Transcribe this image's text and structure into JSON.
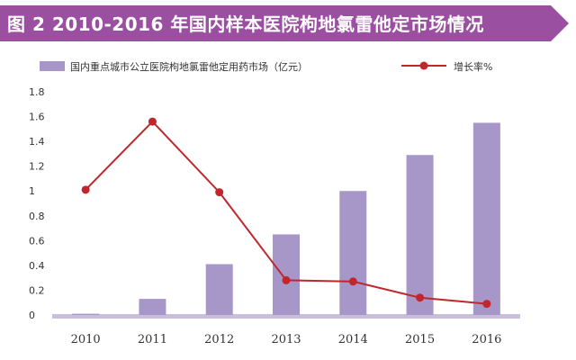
{
  "title": "图 2  2010-2016 年国内样本医院枸地氯雷他定市场情况",
  "colors": {
    "banner": "#9b4fa0",
    "bar": "#a797c9",
    "line": "#c0272d",
    "axis": "#c9bfdc"
  },
  "chart_data": {
    "type": "bar",
    "categories": [
      "2010",
      "2011",
      "2012",
      "2013",
      "2014",
      "2015",
      "2016"
    ],
    "series": [
      {
        "name": "国内重点城市公立医院枸地氯雷他定用药市场（亿元）",
        "type": "bar",
        "values": [
          0.01,
          0.13,
          0.41,
          0.65,
          1.0,
          1.29,
          1.55
        ]
      },
      {
        "name": "增长率%",
        "type": "line",
        "values": [
          1.01,
          1.56,
          0.99,
          0.28,
          0.27,
          0.14,
          0.09
        ]
      }
    ],
    "yticks": [
      "0",
      "0.2",
      "0.4",
      "0.6",
      "0.8",
      "1",
      "1.2",
      "1.4",
      "1.6",
      "1.8"
    ],
    "ylim": [
      0,
      1.8
    ],
    "legend_position": "top",
    "grid": false
  }
}
